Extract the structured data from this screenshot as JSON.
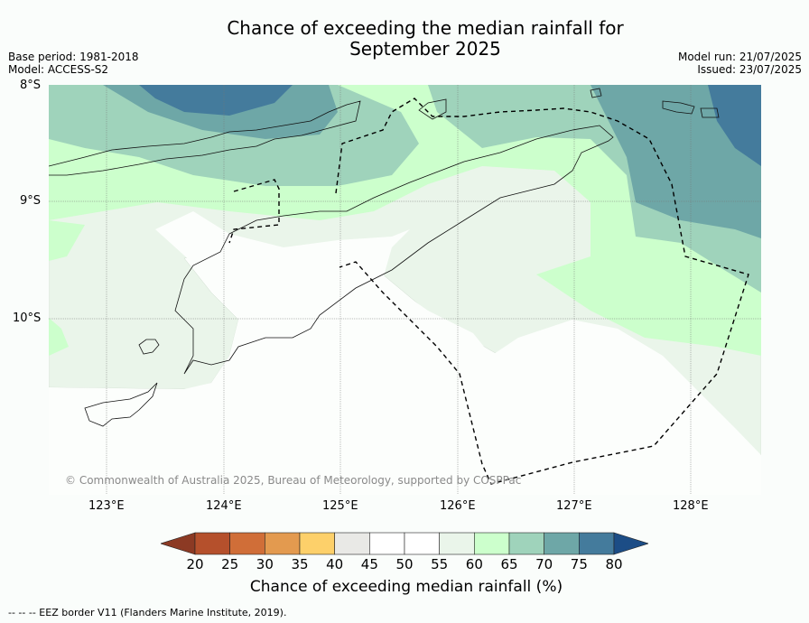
{
  "title": {
    "line1": "Chance of exceeding the median rainfall for",
    "line2": "September 2025"
  },
  "meta_left": {
    "base_period": "Base period: 1981-2018",
    "model": "Model: ACCESS-S2"
  },
  "meta_right": {
    "model_run": "Model run: 21/07/2025",
    "issued": "Issued: 23/07/2025"
  },
  "map": {
    "lat_labels": [
      "8°S",
      "9°S",
      "10°S"
    ],
    "lon_labels": [
      "123°E",
      "124°E",
      "125°E",
      "126°E",
      "127°E",
      "128°E"
    ],
    "copyright": "© Commonwealth of Australia 2025, Bureau of Meteorology, supported by COSPPac",
    "gridlines": true,
    "eez_border_style": "dashed"
  },
  "colorbar": {
    "title": "Chance of exceeding median rainfall (%)",
    "ticks": [
      "20",
      "25",
      "30",
      "35",
      "40",
      "45",
      "50",
      "55",
      "60",
      "65",
      "70",
      "75",
      "80"
    ],
    "colors": [
      "#8c3a24",
      "#b5502c",
      "#d06e38",
      "#e39a4f",
      "#fdd06a",
      "#e9e9e6",
      "#ffffff",
      "#ffffff",
      "#eaf5ea",
      "#ccffcc",
      "#9fd3bb",
      "#6ea7a7",
      "#447b9c",
      "#1c4d86"
    ]
  },
  "footer": "--  --  -- EEZ border V11 (Flanders Marine Institute, 2019)."
}
